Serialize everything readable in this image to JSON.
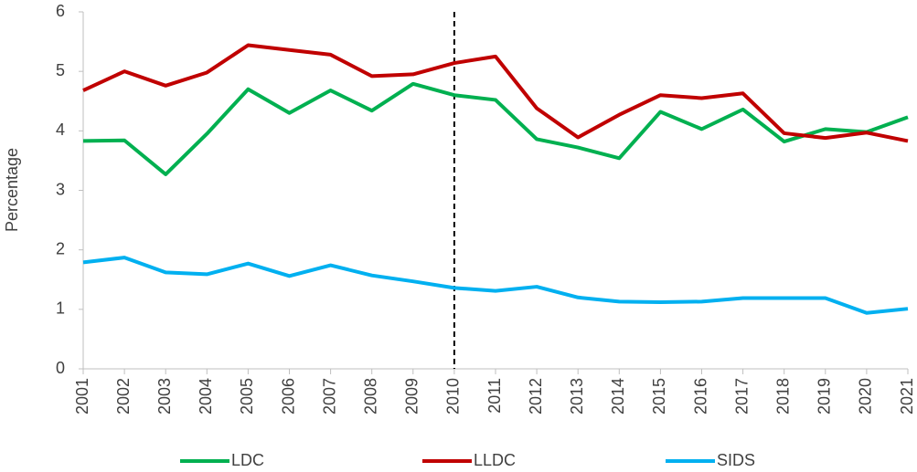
{
  "chart_data": {
    "type": "line",
    "y_label": "Percentage",
    "x": [
      2001,
      2002,
      2003,
      2004,
      2005,
      2006,
      2007,
      2008,
      2009,
      2010,
      2011,
      2012,
      2013,
      2014,
      2015,
      2016,
      2017,
      2018,
      2019,
      2020,
      2021
    ],
    "series": [
      {
        "name": "LDC",
        "color": "#00b050",
        "values": [
          3.83,
          3.84,
          3.27,
          3.95,
          4.7,
          4.3,
          4.68,
          4.34,
          4.79,
          4.6,
          4.52,
          3.86,
          3.72,
          3.54,
          4.32,
          4.03,
          4.36,
          3.82,
          4.03,
          3.98,
          4.23
        ]
      },
      {
        "name": "LLDC",
        "color": "#c00000",
        "values": [
          4.68,
          5.0,
          4.76,
          4.98,
          5.44,
          5.36,
          5.28,
          4.92,
          4.95,
          5.14,
          5.25,
          4.38,
          3.89,
          4.27,
          4.6,
          4.55,
          4.63,
          3.96,
          3.88,
          3.97,
          3.83
        ]
      },
      {
        "name": "SIDS",
        "color": "#00b0f0",
        "values": [
          1.79,
          1.87,
          1.62,
          1.59,
          1.77,
          1.56,
          1.74,
          1.57,
          1.47,
          1.36,
          1.31,
          1.38,
          1.2,
          1.13,
          1.12,
          1.13,
          1.19,
          1.19,
          1.19,
          0.94,
          1.01
        ]
      }
    ],
    "xlim": [
      2001,
      2021
    ],
    "xticks": [
      2001,
      2002,
      2003,
      2004,
      2005,
      2006,
      2007,
      2008,
      2009,
      2010,
      2011,
      2012,
      2013,
      2014,
      2015,
      2016,
      2017,
      2018,
      2019,
      2020,
      2021
    ],
    "ylim": [
      0,
      6
    ],
    "yticks": [
      0,
      1,
      2,
      3,
      4,
      5,
      6
    ],
    "grid": false,
    "reference_line_x": 2010,
    "legend": "bottom"
  }
}
